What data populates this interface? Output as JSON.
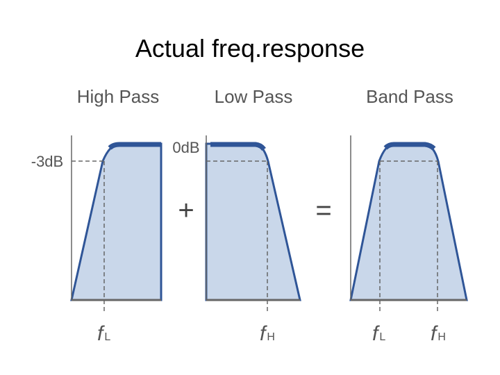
{
  "title": "Actual freq.response",
  "panels": [
    {
      "label": "High Pass",
      "y_label": "-3dB",
      "x_labels": [
        {
          "symbol": "f",
          "subscript": "L"
        }
      ]
    },
    {
      "label": "Low Pass",
      "y_label": "0dB",
      "x_labels": [
        {
          "symbol": "f",
          "subscript": "H"
        }
      ]
    },
    {
      "label": "Band Pass",
      "x_labels": [
        {
          "symbol": "f",
          "subscript": "L"
        },
        {
          "symbol": "f",
          "subscript": "H"
        }
      ]
    }
  ],
  "operators": [
    "+",
    "="
  ]
}
